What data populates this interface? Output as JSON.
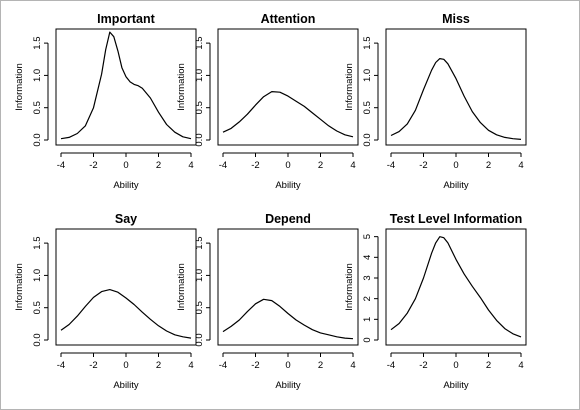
{
  "chart_data": [
    {
      "type": "line",
      "title": "Important",
      "xlabel": "Ability",
      "ylabel": "Information",
      "xlim": [
        -4,
        4
      ],
      "ylim": [
        0,
        1.6
      ],
      "xticks": [
        "-4",
        "-2",
        "0",
        "2",
        "4"
      ],
      "yticks": [
        "0.0",
        "0.5",
        "1.0",
        "1.5"
      ],
      "x": [
        -4,
        -3.5,
        -3,
        -2.5,
        -2,
        -1.5,
        -1.25,
        -1,
        -0.75,
        -0.5,
        -0.25,
        0,
        0.25,
        0.5,
        0.75,
        1,
        1.5,
        2,
        2.5,
        3,
        3.5,
        4
      ],
      "y": [
        0.02,
        0.04,
        0.1,
        0.22,
        0.5,
        1.02,
        1.4,
        1.67,
        1.6,
        1.38,
        1.12,
        0.98,
        0.9,
        0.86,
        0.84,
        0.8,
        0.65,
        0.43,
        0.24,
        0.12,
        0.05,
        0.02
      ]
    },
    {
      "type": "line",
      "title": "Attention",
      "xlabel": "Ability",
      "ylabel": "Information",
      "xlim": [
        -4,
        4
      ],
      "ylim": [
        0,
        1.6
      ],
      "xticks": [
        "-4",
        "-2",
        "0",
        "2",
        "4"
      ],
      "yticks": [
        "0.0",
        "0.5",
        "1.0",
        "1.5"
      ],
      "x": [
        -4,
        -3.5,
        -3,
        -2.5,
        -2,
        -1.5,
        -1,
        -0.5,
        0,
        0.5,
        1,
        1.5,
        2,
        2.5,
        3,
        3.5,
        4
      ],
      "y": [
        0.12,
        0.18,
        0.28,
        0.4,
        0.54,
        0.67,
        0.75,
        0.74,
        0.68,
        0.6,
        0.52,
        0.42,
        0.32,
        0.22,
        0.14,
        0.08,
        0.05
      ]
    },
    {
      "type": "line",
      "title": "Miss",
      "xlabel": "Ability",
      "ylabel": "Information",
      "xlim": [
        -4,
        4
      ],
      "ylim": [
        0,
        1.6
      ],
      "xticks": [
        "-4",
        "-2",
        "0",
        "2",
        "4"
      ],
      "yticks": [
        "0.0",
        "0.5",
        "1.0",
        "1.5"
      ],
      "x": [
        -4,
        -3.5,
        -3,
        -2.5,
        -2,
        -1.5,
        -1.25,
        -1,
        -0.75,
        -0.5,
        0,
        0.5,
        1,
        1.5,
        2,
        2.5,
        3,
        3.5,
        4
      ],
      "y": [
        0.07,
        0.13,
        0.25,
        0.46,
        0.78,
        1.08,
        1.2,
        1.26,
        1.25,
        1.18,
        0.95,
        0.68,
        0.44,
        0.27,
        0.15,
        0.08,
        0.04,
        0.02,
        0.01
      ]
    },
    {
      "type": "line",
      "title": "Say",
      "xlabel": "Ability",
      "ylabel": "Information",
      "xlim": [
        -4,
        4
      ],
      "ylim": [
        0,
        1.6
      ],
      "xticks": [
        "-4",
        "-2",
        "0",
        "2",
        "4"
      ],
      "yticks": [
        "0.0",
        "0.5",
        "1.0",
        "1.5"
      ],
      "x": [
        -4,
        -3.5,
        -3,
        -2.5,
        -2,
        -1.5,
        -1,
        -0.5,
        0,
        0.5,
        1,
        1.5,
        2,
        2.5,
        3,
        3.5,
        4
      ],
      "y": [
        0.15,
        0.24,
        0.37,
        0.52,
        0.66,
        0.75,
        0.78,
        0.74,
        0.65,
        0.55,
        0.43,
        0.32,
        0.22,
        0.14,
        0.08,
        0.05,
        0.03
      ]
    },
    {
      "type": "line",
      "title": "Depend",
      "xlabel": "Ability",
      "ylabel": "Information",
      "xlim": [
        -4,
        4
      ],
      "ylim": [
        0,
        1.6
      ],
      "xticks": [
        "-4",
        "-2",
        "0",
        "2",
        "4"
      ],
      "yticks": [
        "0.0",
        "0.5",
        "1.0",
        "1.5"
      ],
      "x": [
        -4,
        -3.5,
        -3,
        -2.5,
        -2,
        -1.5,
        -1,
        -0.5,
        0,
        0.5,
        1,
        1.5,
        2,
        2.5,
        3,
        3.5,
        4
      ],
      "y": [
        0.13,
        0.21,
        0.31,
        0.44,
        0.56,
        0.63,
        0.61,
        0.52,
        0.41,
        0.31,
        0.23,
        0.16,
        0.11,
        0.08,
        0.05,
        0.03,
        0.02
      ]
    },
    {
      "type": "line",
      "title": "Test Level Information",
      "xlabel": "Ability",
      "ylabel": "Information",
      "xlim": [
        -4,
        4
      ],
      "ylim": [
        0,
        5
      ],
      "xticks": [
        "-4",
        "-2",
        "0",
        "2",
        "4"
      ],
      "yticks": [
        "0",
        "1",
        "2",
        "3",
        "4",
        "5"
      ],
      "x": [
        -4,
        -3.5,
        -3,
        -2.5,
        -2,
        -1.5,
        -1.25,
        -1,
        -0.75,
        -0.5,
        0,
        0.5,
        1,
        1.5,
        2,
        2.5,
        3,
        3.5,
        4
      ],
      "y": [
        0.5,
        0.8,
        1.3,
        2.0,
        3.0,
        4.2,
        4.7,
        5.0,
        4.95,
        4.7,
        3.9,
        3.2,
        2.6,
        2.05,
        1.45,
        0.95,
        0.55,
        0.3,
        0.15
      ]
    }
  ]
}
